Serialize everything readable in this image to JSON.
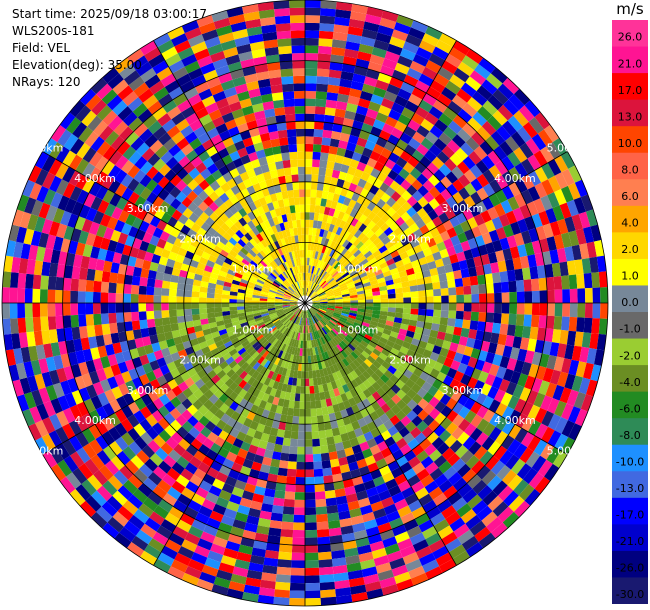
{
  "header": {
    "start_time": "Start time: 2025/09/18 03:00:17",
    "instrument": "WLS200s-181",
    "field": "Field: VEL",
    "elevation": "Elevation(deg): 35.00",
    "nrays": "NRays: 120"
  },
  "colorbar": {
    "unit": "m/s",
    "ticks": [
      "26.0",
      "21.0",
      "17.0",
      "13.0",
      "10.0",
      "8.0",
      "6.0",
      "4.0",
      "2.0",
      "1.0",
      "0.0",
      "-1.0",
      "-2.0",
      "-4.0",
      "-6.0",
      "-8.0",
      "-10.0",
      "-13.0",
      "-17.0",
      "-21.0",
      "-26.0",
      "-30.0"
    ],
    "colors": [
      "#ff3399",
      "#ff1493",
      "#ff0000",
      "#dc143c",
      "#ff4500",
      "#ff6347",
      "#ff7f50",
      "#ffa500",
      "#ffd700",
      "#ffff00",
      "#778899",
      "#696969",
      "#9acd32",
      "#6b8e23",
      "#228b22",
      "#2e8b57",
      "#1e90ff",
      "#4169e1",
      "#0000ff",
      "#0000cd",
      "#000080",
      "#191970"
    ]
  },
  "chart_data": {
    "type": "heatmap",
    "subtype": "polar-ppi",
    "field": "VEL",
    "unit": "m/s",
    "n_rays": 120,
    "range_labels": [
      "1.00km",
      "2.00km",
      "3.00km",
      "4.00km",
      "5.00km"
    ],
    "range_km": [
      1.0,
      2.0,
      3.0,
      4.0,
      5.0
    ],
    "max_range_km": 5.0,
    "vmin": -30.0,
    "vmax": 26.0,
    "description_pattern": [
      {
        "sector": "north half, range 0.5-2.5 km",
        "velocity_m_s": [
          0.5,
          4.0
        ]
      },
      {
        "sector": "south half, range 0.5-2.5 km",
        "velocity_m_s": [
          -4.0,
          -1.0
        ]
      },
      {
        "sector": "south-east, range 0.3-1.2 km",
        "velocity_m_s": [
          -6.0,
          -2.0
        ]
      },
      {
        "sector": "range > 2.5 km",
        "velocity_m_s": [
          -30.0,
          26.0
        ],
        "note": "noise"
      }
    ]
  }
}
